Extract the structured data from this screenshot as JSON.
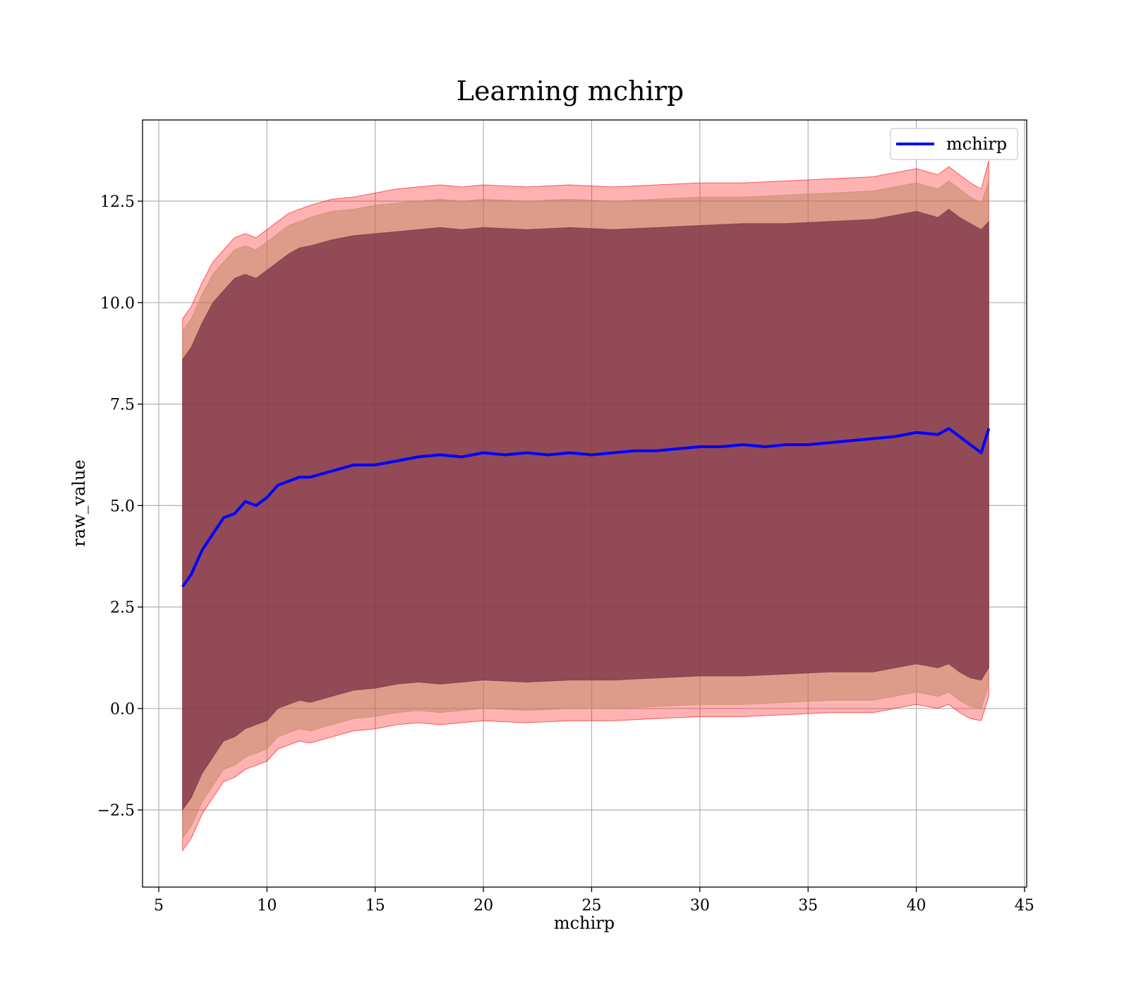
{
  "chart_data": {
    "type": "line",
    "title": "Learning mchirp",
    "xlabel": "mchirp",
    "ylabel": "raw_value",
    "xlim": [
      4.25,
      45.1
    ],
    "ylim": [
      -4.4,
      14.5
    ],
    "xticks": [
      5,
      10,
      15,
      20,
      25,
      30,
      35,
      40,
      45
    ],
    "yticks": [
      -2.5,
      0.0,
      2.5,
      5.0,
      7.5,
      10.0,
      12.5
    ],
    "xtick_labels": [
      "5",
      "10",
      "15",
      "20",
      "25",
      "30",
      "35",
      "40",
      "45"
    ],
    "ytick_labels": [
      "−2.5",
      "0.0",
      "2.5",
      "5.0",
      "7.5",
      "10.0",
      "12.5"
    ],
    "grid": true,
    "legend": {
      "placement": "top-right",
      "entries": [
        "mchirp"
      ]
    },
    "series": [
      {
        "name": "mchirp",
        "color": "#0000ff",
        "x": [
          6.1,
          6.5,
          7.0,
          7.5,
          8.0,
          8.5,
          9.0,
          9.5,
          10.0,
          10.5,
          11.0,
          11.5,
          12.0,
          13.0,
          14.0,
          15.0,
          16.0,
          17.0,
          18.0,
          19.0,
          20.0,
          21.0,
          22.0,
          23.0,
          24.0,
          25.0,
          26.0,
          27.0,
          28.0,
          29.0,
          30.0,
          31.0,
          32.0,
          33.0,
          34.0,
          35.0,
          36.0,
          37.0,
          38.0,
          39.0,
          40.0,
          41.0,
          41.5,
          42.0,
          42.5,
          43.0,
          43.35
        ],
        "y": [
          3.0,
          3.3,
          3.9,
          4.3,
          4.7,
          4.8,
          5.1,
          5.0,
          5.2,
          5.5,
          5.6,
          5.7,
          5.7,
          5.85,
          6.0,
          6.0,
          6.1,
          6.2,
          6.25,
          6.2,
          6.3,
          6.25,
          6.3,
          6.25,
          6.3,
          6.25,
          6.3,
          6.35,
          6.35,
          6.4,
          6.45,
          6.45,
          6.5,
          6.45,
          6.5,
          6.5,
          6.55,
          6.6,
          6.65,
          6.7,
          6.8,
          6.75,
          6.9,
          6.7,
          6.5,
          6.3,
          6.9
        ]
      }
    ],
    "bands": [
      {
        "description": "outer band",
        "color": "#ff0000",
        "opacity": 0.3,
        "x": [
          6.1,
          6.5,
          7.0,
          7.5,
          8.0,
          8.5,
          9.0,
          9.5,
          10.0,
          10.5,
          11.0,
          11.5,
          12.0,
          13.0,
          14.0,
          15.0,
          16.0,
          17.0,
          18.0,
          19.0,
          20.0,
          22.0,
          24.0,
          26.0,
          28.0,
          30.0,
          32.0,
          34.0,
          36.0,
          38.0,
          40.0,
          41.0,
          41.5,
          42.0,
          42.5,
          43.0,
          43.35
        ],
        "upper": [
          9.6,
          9.9,
          10.5,
          11.0,
          11.3,
          11.6,
          11.7,
          11.6,
          11.8,
          12.0,
          12.2,
          12.3,
          12.4,
          12.55,
          12.6,
          12.7,
          12.8,
          12.85,
          12.9,
          12.85,
          12.9,
          12.85,
          12.9,
          12.85,
          12.9,
          12.95,
          12.95,
          13.0,
          13.05,
          13.1,
          13.3,
          13.15,
          13.35,
          13.15,
          12.95,
          12.8,
          13.5
        ],
        "lower": [
          -3.5,
          -3.2,
          -2.6,
          -2.2,
          -1.8,
          -1.7,
          -1.5,
          -1.4,
          -1.3,
          -1.0,
          -0.9,
          -0.8,
          -0.85,
          -0.7,
          -0.55,
          -0.5,
          -0.4,
          -0.35,
          -0.4,
          -0.35,
          -0.3,
          -0.35,
          -0.3,
          -0.3,
          -0.25,
          -0.2,
          -0.2,
          -0.15,
          -0.1,
          -0.1,
          0.1,
          0.0,
          0.1,
          -0.1,
          -0.25,
          -0.3,
          0.3
        ]
      },
      {
        "description": "middle band",
        "color": "#c08a68",
        "opacity": 0.55,
        "x": [
          6.1,
          6.5,
          7.0,
          7.5,
          8.0,
          8.5,
          9.0,
          9.5,
          10.0,
          10.5,
          11.0,
          11.5,
          12.0,
          13.0,
          14.0,
          15.0,
          16.0,
          17.0,
          18.0,
          19.0,
          20.0,
          22.0,
          24.0,
          26.0,
          28.0,
          30.0,
          32.0,
          34.0,
          36.0,
          38.0,
          40.0,
          41.0,
          41.5,
          42.0,
          42.5,
          43.0,
          43.35
        ],
        "upper": [
          9.3,
          9.6,
          10.2,
          10.7,
          11.0,
          11.3,
          11.4,
          11.3,
          11.5,
          11.7,
          11.9,
          12.0,
          12.1,
          12.25,
          12.3,
          12.4,
          12.45,
          12.5,
          12.55,
          12.5,
          12.55,
          12.5,
          12.55,
          12.5,
          12.55,
          12.6,
          12.6,
          12.65,
          12.7,
          12.75,
          12.95,
          12.8,
          13.0,
          12.8,
          12.6,
          12.45,
          13.0
        ],
        "lower": [
          -3.2,
          -2.9,
          -2.3,
          -1.9,
          -1.5,
          -1.4,
          -1.2,
          -1.1,
          -1.0,
          -0.7,
          -0.6,
          -0.5,
          -0.55,
          -0.4,
          -0.25,
          -0.2,
          -0.1,
          -0.05,
          -0.1,
          -0.05,
          0.0,
          -0.05,
          0.0,
          0.0,
          0.05,
          0.1,
          0.1,
          0.15,
          0.2,
          0.2,
          0.4,
          0.3,
          0.4,
          0.2,
          0.05,
          0.0,
          0.6
        ]
      },
      {
        "description": "inner band",
        "color": "#7a2f46",
        "opacity": 0.75,
        "x": [
          6.1,
          6.5,
          7.0,
          7.5,
          8.0,
          8.5,
          9.0,
          9.5,
          10.0,
          10.5,
          11.0,
          11.5,
          12.0,
          13.0,
          14.0,
          15.0,
          16.0,
          17.0,
          18.0,
          19.0,
          20.0,
          22.0,
          24.0,
          26.0,
          28.0,
          30.0,
          32.0,
          34.0,
          36.0,
          38.0,
          40.0,
          41.0,
          41.5,
          42.0,
          42.5,
          43.0,
          43.35
        ],
        "upper": [
          8.6,
          8.9,
          9.5,
          10.0,
          10.3,
          10.6,
          10.7,
          10.6,
          10.8,
          11.0,
          11.2,
          11.35,
          11.4,
          11.55,
          11.65,
          11.7,
          11.75,
          11.8,
          11.85,
          11.8,
          11.85,
          11.8,
          11.85,
          11.8,
          11.85,
          11.9,
          11.95,
          11.95,
          12.0,
          12.05,
          12.25,
          12.1,
          12.3,
          12.1,
          11.95,
          11.8,
          12.0
        ],
        "lower": [
          -2.5,
          -2.2,
          -1.6,
          -1.2,
          -0.8,
          -0.7,
          -0.5,
          -0.4,
          -0.3,
          0.0,
          0.1,
          0.2,
          0.15,
          0.3,
          0.45,
          0.5,
          0.6,
          0.65,
          0.6,
          0.65,
          0.7,
          0.65,
          0.7,
          0.7,
          0.75,
          0.8,
          0.8,
          0.85,
          0.9,
          0.9,
          1.1,
          1.0,
          1.1,
          0.9,
          0.75,
          0.7,
          1.0
        ]
      }
    ]
  }
}
